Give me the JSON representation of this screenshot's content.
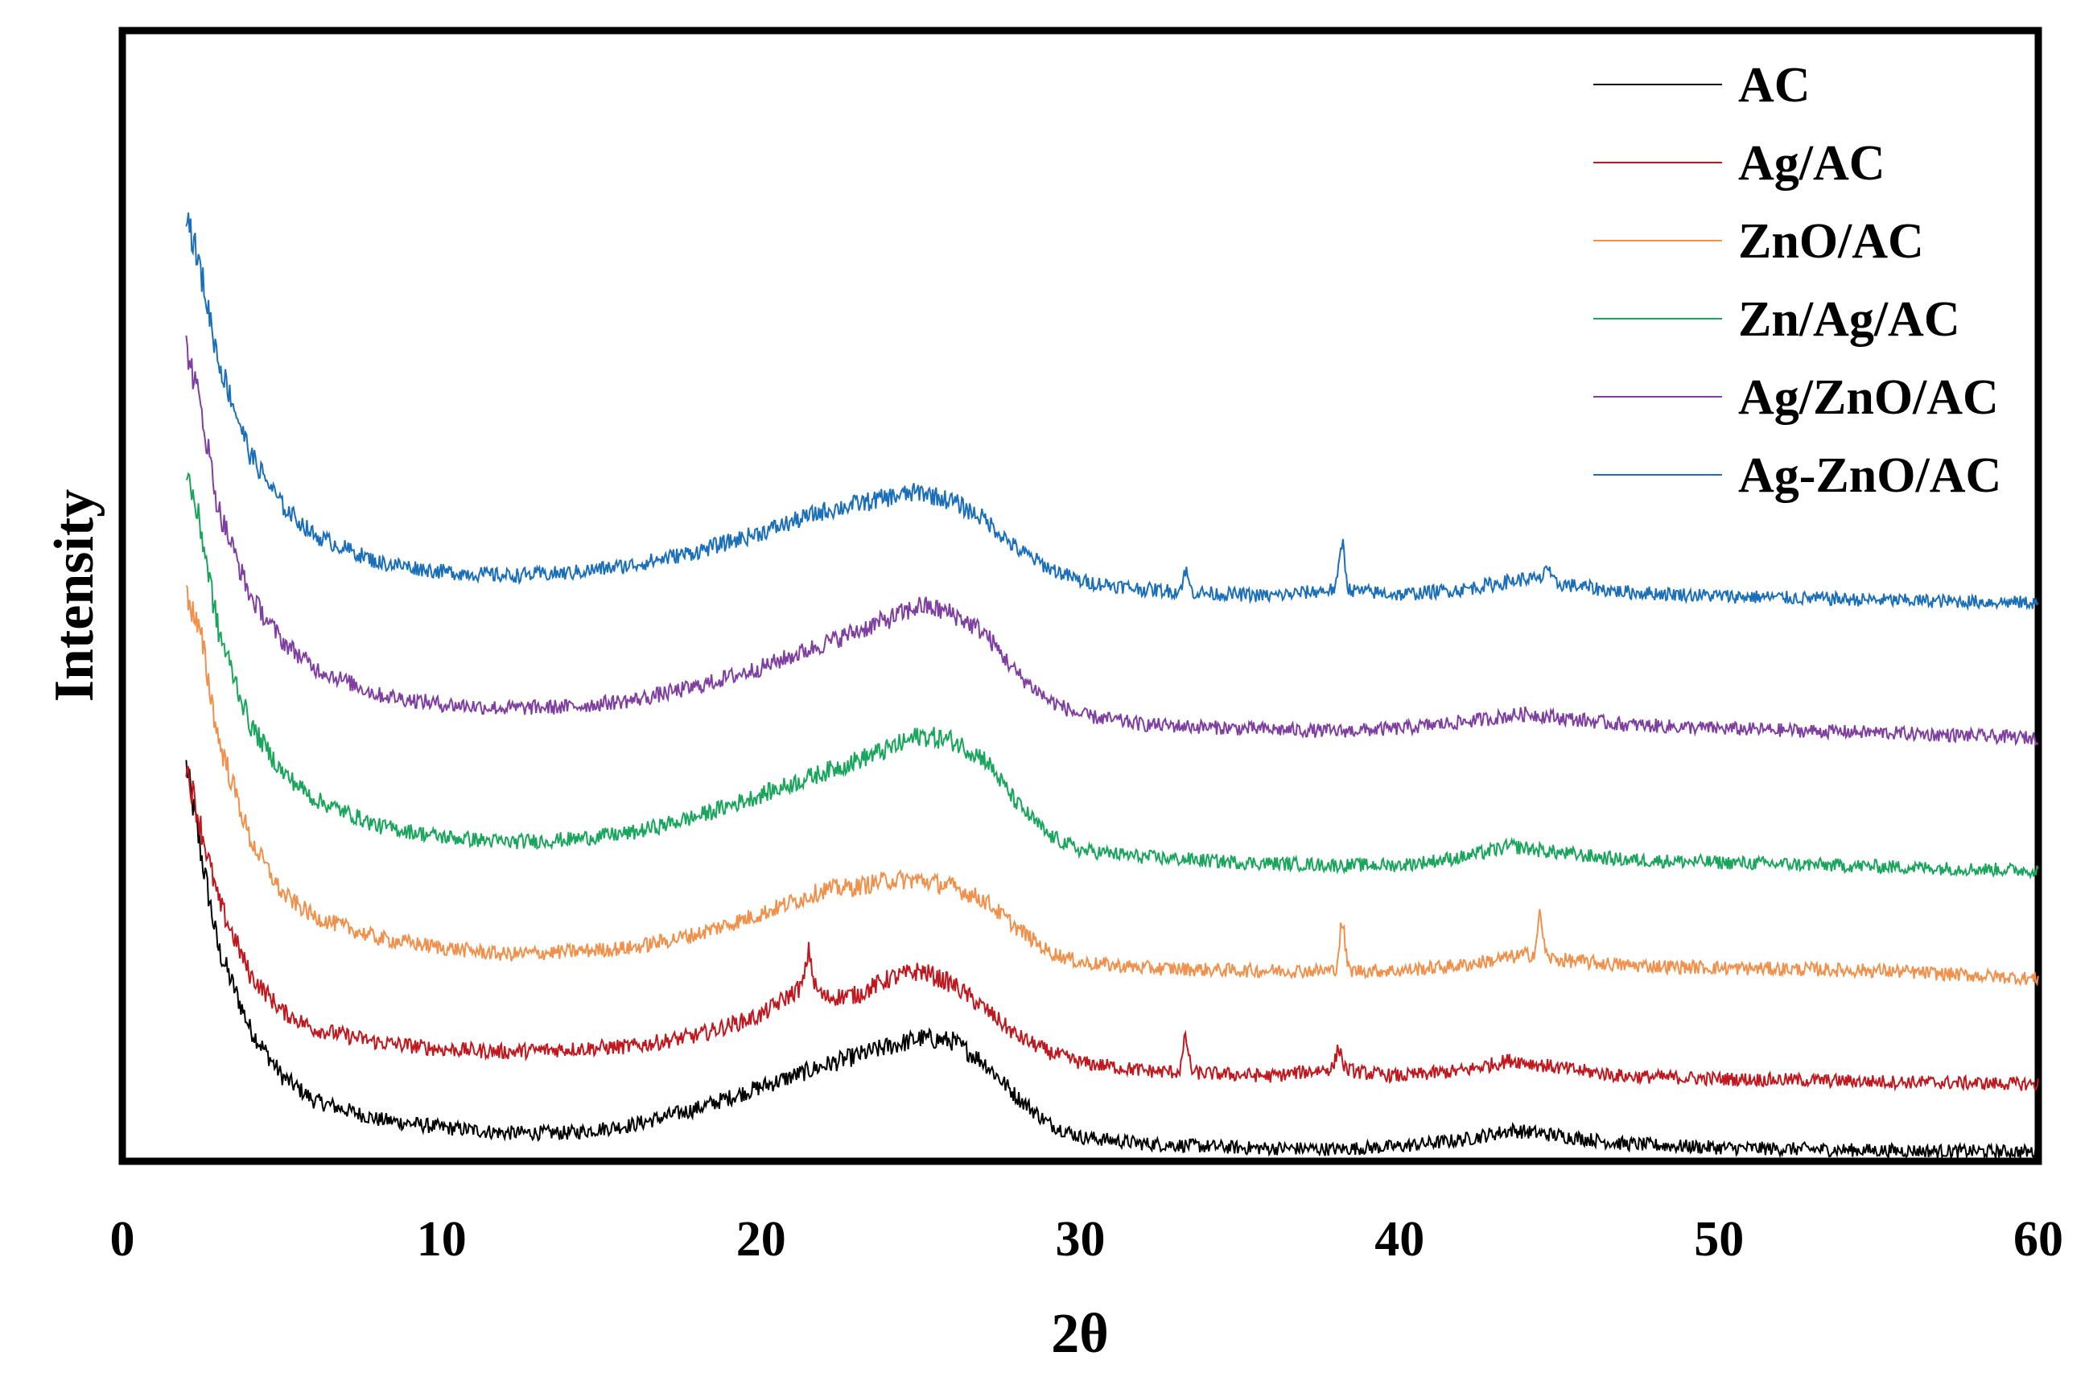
{
  "chart_data": {
    "type": "line",
    "title": "",
    "xlabel": "2θ",
    "ylabel": "Intensity",
    "xlim": [
      0,
      60
    ],
    "ylim": [
      0,
      8.2
    ],
    "x_ticks": [
      "0",
      "10",
      "20",
      "30",
      "40",
      "50",
      "60"
    ],
    "y_ticks_shown": false,
    "grid": false,
    "legend_position": "top-right",
    "series": [
      {
        "name": "AC",
        "color": "#000000",
        "points": [
          [
            2.0,
            2.9
          ],
          [
            2.5,
            2.2
          ],
          [
            3,
            1.55
          ],
          [
            4,
            0.95
          ],
          [
            5,
            0.6
          ],
          [
            6,
            0.42
          ],
          [
            8,
            0.28
          ],
          [
            10,
            0.22
          ],
          [
            12,
            0.18
          ],
          [
            14,
            0.18
          ],
          [
            16,
            0.24
          ],
          [
            18,
            0.36
          ],
          [
            20,
            0.52
          ],
          [
            22,
            0.68
          ],
          [
            24,
            0.82
          ],
          [
            25,
            0.88
          ],
          [
            26,
            0.86
          ],
          [
            27,
            0.7
          ],
          [
            28,
            0.45
          ],
          [
            29,
            0.25
          ],
          [
            30,
            0.15
          ],
          [
            32,
            0.1
          ],
          [
            35,
            0.07
          ],
          [
            38,
            0.06
          ],
          [
            40,
            0.08
          ],
          [
            42,
            0.13
          ],
          [
            43.5,
            0.2
          ],
          [
            45,
            0.16
          ],
          [
            47,
            0.1
          ],
          [
            50,
            0.07
          ],
          [
            55,
            0.05
          ],
          [
            60,
            0.04
          ]
        ],
        "peaks": []
      },
      {
        "name": "Ag/AC",
        "color": "#c0181f",
        "points": [
          [
            2.0,
            2.9
          ],
          [
            2.5,
            2.4
          ],
          [
            3,
            1.9
          ],
          [
            4,
            1.35
          ],
          [
            5,
            1.08
          ],
          [
            6,
            0.95
          ],
          [
            8,
            0.85
          ],
          [
            10,
            0.8
          ],
          [
            12,
            0.78
          ],
          [
            14,
            0.8
          ],
          [
            16,
            0.82
          ],
          [
            18,
            0.9
          ],
          [
            20,
            1.05
          ],
          [
            21.5,
            1.3
          ],
          [
            22,
            1.18
          ],
          [
            23,
            1.2
          ],
          [
            24,
            1.32
          ],
          [
            25,
            1.38
          ],
          [
            26,
            1.28
          ],
          [
            27,
            1.1
          ],
          [
            28,
            0.9
          ],
          [
            29,
            0.78
          ],
          [
            30,
            0.7
          ],
          [
            32,
            0.64
          ],
          [
            34,
            0.62
          ],
          [
            36,
            0.6
          ],
          [
            38,
            0.66
          ],
          [
            39,
            0.62
          ],
          [
            40,
            0.6
          ],
          [
            42,
            0.64
          ],
          [
            43.5,
            0.72
          ],
          [
            45,
            0.66
          ],
          [
            47,
            0.6
          ],
          [
            50,
            0.58
          ],
          [
            55,
            0.56
          ],
          [
            60,
            0.54
          ]
        ],
        "peaks": [
          [
            21.5,
            0.22
          ],
          [
            33.3,
            0.25
          ],
          [
            38.1,
            0.15
          ]
        ]
      },
      {
        "name": "ZnO/AC",
        "color": "#f0904a",
        "points": [
          [
            2.0,
            4.2
          ],
          [
            2.5,
            3.8
          ],
          [
            3,
            3.1
          ],
          [
            4,
            2.35
          ],
          [
            5,
            1.95
          ],
          [
            6,
            1.78
          ],
          [
            8,
            1.62
          ],
          [
            10,
            1.55
          ],
          [
            12,
            1.5
          ],
          [
            14,
            1.52
          ],
          [
            16,
            1.55
          ],
          [
            18,
            1.65
          ],
          [
            20,
            1.8
          ],
          [
            22,
            1.98
          ],
          [
            23,
            2.0
          ],
          [
            24,
            2.05
          ],
          [
            25,
            2.05
          ],
          [
            26,
            2.0
          ],
          [
            27,
            1.9
          ],
          [
            28,
            1.7
          ],
          [
            29,
            1.52
          ],
          [
            30,
            1.44
          ],
          [
            32,
            1.4
          ],
          [
            35,
            1.38
          ],
          [
            38,
            1.38
          ],
          [
            40,
            1.38
          ],
          [
            42,
            1.42
          ],
          [
            44,
            1.5
          ],
          [
            45,
            1.46
          ],
          [
            47,
            1.42
          ],
          [
            50,
            1.4
          ],
          [
            55,
            1.38
          ],
          [
            60,
            1.32
          ]
        ],
        "peaks": [
          [
            38.2,
            0.35
          ],
          [
            44.4,
            0.3
          ]
        ]
      },
      {
        "name": "Zn/Ag/AC",
        "color": "#1aa55c",
        "points": [
          [
            2.0,
            5.1
          ],
          [
            2.5,
            4.6
          ],
          [
            3,
            3.9
          ],
          [
            4,
            3.2
          ],
          [
            5,
            2.85
          ],
          [
            6,
            2.65
          ],
          [
            8,
            2.45
          ],
          [
            10,
            2.37
          ],
          [
            12,
            2.33
          ],
          [
            14,
            2.35
          ],
          [
            16,
            2.4
          ],
          [
            18,
            2.52
          ],
          [
            20,
            2.68
          ],
          [
            22,
            2.85
          ],
          [
            24,
            3.02
          ],
          [
            25,
            3.12
          ],
          [
            26,
            3.08
          ],
          [
            27,
            2.95
          ],
          [
            28,
            2.62
          ],
          [
            29,
            2.38
          ],
          [
            30,
            2.27
          ],
          [
            32,
            2.22
          ],
          [
            35,
            2.18
          ],
          [
            38,
            2.16
          ],
          [
            40,
            2.16
          ],
          [
            42,
            2.22
          ],
          [
            43.5,
            2.3
          ],
          [
            45,
            2.25
          ],
          [
            47,
            2.2
          ],
          [
            50,
            2.18
          ],
          [
            55,
            2.15
          ],
          [
            60,
            2.12
          ]
        ],
        "peaks": []
      },
      {
        "name": "Ag/ZnO/AC",
        "color": "#7f3fa0",
        "points": [
          [
            2.0,
            6.0
          ],
          [
            2.5,
            5.5
          ],
          [
            3,
            4.8
          ],
          [
            4,
            4.15
          ],
          [
            5,
            3.82
          ],
          [
            6,
            3.62
          ],
          [
            8,
            3.42
          ],
          [
            10,
            3.35
          ],
          [
            12,
            3.32
          ],
          [
            14,
            3.33
          ],
          [
            16,
            3.38
          ],
          [
            18,
            3.48
          ],
          [
            20,
            3.62
          ],
          [
            22,
            3.8
          ],
          [
            24,
            3.98
          ],
          [
            25,
            4.08
          ],
          [
            26,
            4.02
          ],
          [
            27,
            3.88
          ],
          [
            28,
            3.58
          ],
          [
            29,
            3.38
          ],
          [
            30,
            3.27
          ],
          [
            32,
            3.2
          ],
          [
            35,
            3.17
          ],
          [
            38,
            3.15
          ],
          [
            40,
            3.17
          ],
          [
            42,
            3.22
          ],
          [
            44,
            3.28
          ],
          [
            45,
            3.25
          ],
          [
            47,
            3.2
          ],
          [
            50,
            3.17
          ],
          [
            55,
            3.14
          ],
          [
            60,
            3.1
          ]
        ],
        "peaks": []
      },
      {
        "name": "Ag-ZnO/AC",
        "color": "#1a6fb8",
        "points": [
          [
            2.0,
            7.0
          ],
          [
            2.5,
            6.5
          ],
          [
            3,
            5.9
          ],
          [
            4,
            5.2
          ],
          [
            5,
            4.82
          ],
          [
            6,
            4.6
          ],
          [
            8,
            4.4
          ],
          [
            10,
            4.33
          ],
          [
            12,
            4.3
          ],
          [
            14,
            4.32
          ],
          [
            16,
            4.38
          ],
          [
            18,
            4.48
          ],
          [
            20,
            4.62
          ],
          [
            22,
            4.78
          ],
          [
            24,
            4.88
          ],
          [
            25,
            4.92
          ],
          [
            26,
            4.85
          ],
          [
            27,
            4.72
          ],
          [
            28,
            4.5
          ],
          [
            29,
            4.36
          ],
          [
            30,
            4.26
          ],
          [
            32,
            4.2
          ],
          [
            34,
            4.17
          ],
          [
            36,
            4.15
          ],
          [
            38,
            4.2
          ],
          [
            40,
            4.16
          ],
          [
            42,
            4.2
          ],
          [
            44,
            4.28
          ],
          [
            45,
            4.24
          ],
          [
            47,
            4.18
          ],
          [
            50,
            4.15
          ],
          [
            55,
            4.12
          ],
          [
            60,
            4.1
          ]
        ],
        "peaks": [
          [
            33.3,
            0.15
          ],
          [
            38.2,
            0.35
          ],
          [
            44.6,
            0.12
          ]
        ]
      }
    ]
  }
}
